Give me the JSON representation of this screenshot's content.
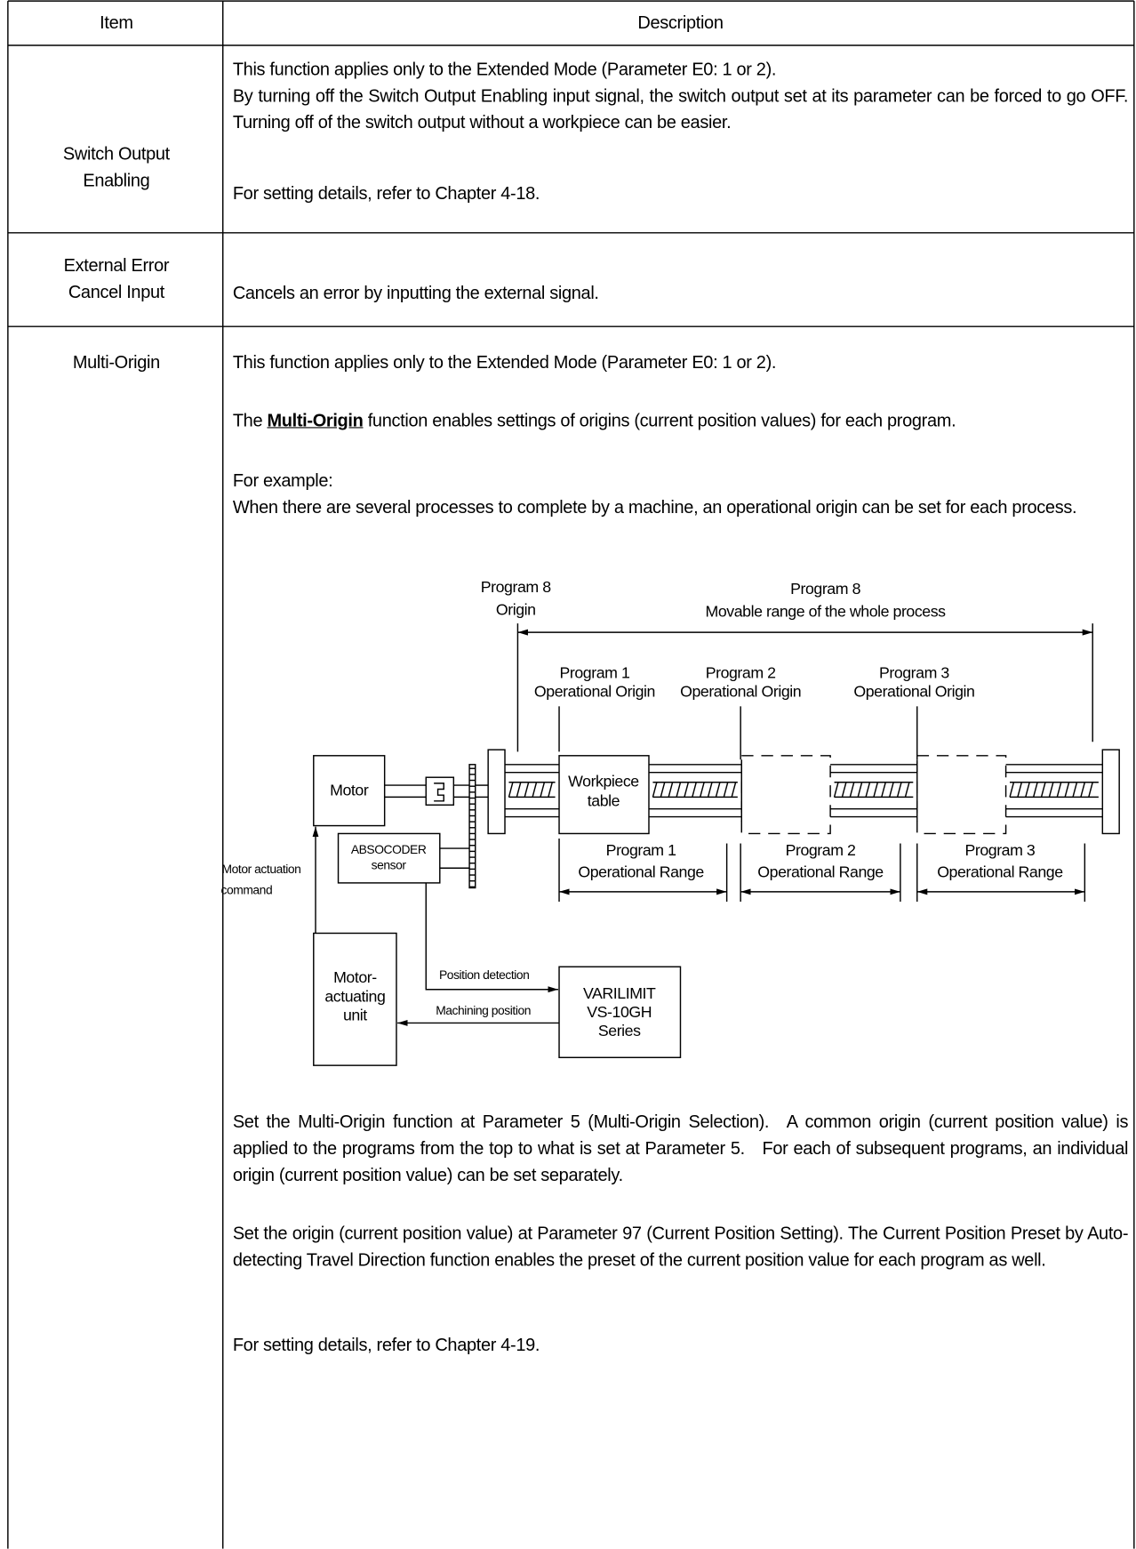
{
  "table": {
    "header": [
      "Item",
      "Description"
    ],
    "rows": [
      {
        "item": "Switch Output Enabling",
        "description": [
          "This function applies only to the Extended Mode (Parameter E0: 1 or 2).",
          "By turning off the Switch Output Enabling input signal, the switch output set at its parameter can be forced to go OFF. Turning off of the switch output without a workpiece can be easier.",
          "For setting details, refer to Chapter 4-18."
        ]
      },
      {
        "item": "External Error Cancel Input",
        "description": [
          "Cancels an error by inputting the external signal."
        ]
      },
      {
        "item": "Multi-Origin",
        "description": [
          "This function applies only to the Extended Mode (Parameter E0: 1 or 2).",
          [
            "The ",
            "Multi-Origin",
            " function enables settings of origins (current position values) for each program."
          ],
          "For example:",
          "When there are several processes to complete by a machine, an operational origin can be set for each process.",
          "Set the Multi-Origin function at Parameter 5 (Multi-Origin Selection). A common origin (current position value) is applied to the programs from the top to what is set at Parameter 5. For each of subsequent programs, an individual origin (current position value) can be set separately.",
          "Set the origin (current position value) at Parameter 97 (Current Position Setting). The Current Position Preset by Auto-detecting Travel Direction function enables the preset of the current position value for each program as well.",
          "For setting details, refer to Chapter 4-19."
        ]
      }
    ]
  },
  "diagram": {
    "program8_origin": [
      "Program 8",
      "Origin"
    ],
    "program8_range": [
      "Program 8",
      "Movable range of the whole process"
    ],
    "program1_origin": [
      "Program 1",
      "Operational Origin"
    ],
    "program2_origin": [
      "Program 2",
      "Operational Origin"
    ],
    "program3_origin": [
      "Program 3",
      "Operational Origin"
    ],
    "motor": "Motor",
    "workpiece": [
      "Workpiece",
      "table"
    ],
    "sensor": [
      "ABSOCODER",
      "sensor"
    ],
    "program1_range": [
      "Program 1",
      "Operational Range"
    ],
    "program2_range": [
      "Program 2",
      "Operational Range"
    ],
    "program3_range": [
      "Program 3",
      "Operational Range"
    ],
    "command": [
      "Motor actuation",
      "command"
    ],
    "actuating_unit": [
      "Motor-",
      "actuating",
      "unit"
    ],
    "position_detection": "Position detection",
    "machining_position": "Machining position",
    "varilimit": [
      "VARILIMIT",
      "VS-10GH",
      "Series"
    ]
  }
}
